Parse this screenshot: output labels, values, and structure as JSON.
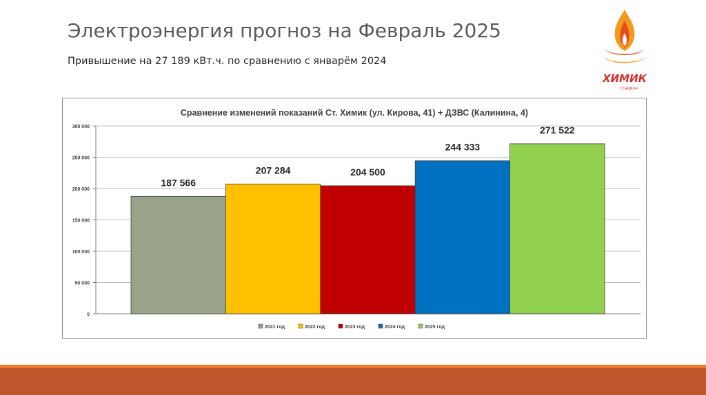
{
  "slide": {
    "title": "Электроэнергия прогноз на Февраль 2025",
    "subtitle": "Привышение на 27 189 кВт.ч. по сравнению с январём 2024"
  },
  "logo": {
    "text": "ХИМИК",
    "subtext": "стадион",
    "colors": {
      "flame": "#e84a1a",
      "orange": "#f39a1e",
      "text": "#d6302a"
    }
  },
  "colors": {
    "bottom_stripe": "#e97e2a",
    "bottom_band": "#c0562b"
  },
  "chart_data": {
    "type": "bar",
    "title": "Сравнение изменений показаний Ст. Химик (ул. Кирова, 41) + ДЗВС (Калинина, 4)",
    "series": [
      {
        "name": "2021 год",
        "value": 187566,
        "label": "187 566",
        "color": "#98a38a"
      },
      {
        "name": "2022 год",
        "value": 207284,
        "label": "207 284",
        "color": "#ffc000"
      },
      {
        "name": "2023 год",
        "value": 204500,
        "label": "204 500",
        "color": "#c00000"
      },
      {
        "name": "2024 год",
        "value": 244333,
        "label": "244 333",
        "color": "#0070c0"
      },
      {
        "name": "2025 год",
        "value": 271522,
        "label": "271 522",
        "color": "#92d050"
      }
    ],
    "ylim": [
      0,
      300000
    ],
    "yticks": [
      {
        "value": 0,
        "label": "0"
      },
      {
        "value": 50000,
        "label": "50 000"
      },
      {
        "value": 100000,
        "label": "100 000"
      },
      {
        "value": 150000,
        "label": "150 000"
      },
      {
        "value": 200000,
        "label": "200 000"
      },
      {
        "value": 250000,
        "label": "250 000"
      },
      {
        "value": 300000,
        "label": "300 000"
      }
    ],
    "grid": true,
    "legend_position": "bottom"
  }
}
